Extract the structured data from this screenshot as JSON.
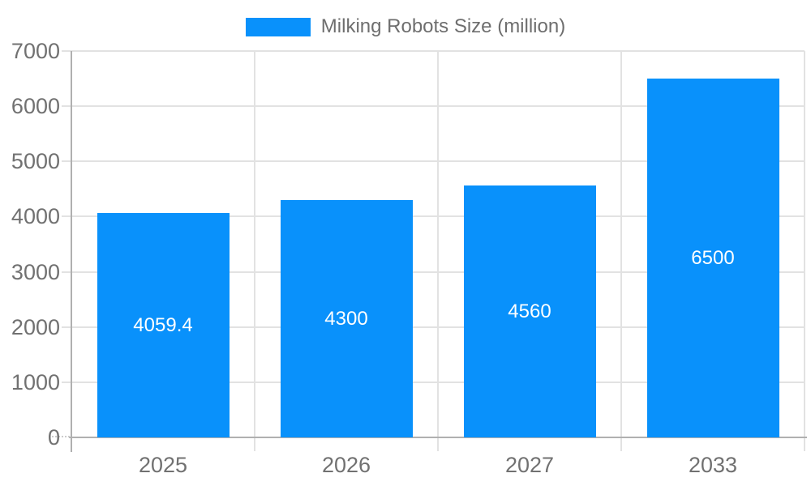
{
  "chart_data": {
    "type": "bar",
    "title": "",
    "legend": {
      "label": "Milking Robots Size (million)",
      "position": "top-center"
    },
    "categories": [
      "2025",
      "2026",
      "2027",
      "2033"
    ],
    "series": [
      {
        "name": "Milking Robots Size (million)",
        "values": [
          4059.4,
          4300,
          4560,
          6500
        ]
      }
    ],
    "bar_value_labels": [
      "4059.4",
      "4300",
      "4560",
      "6500"
    ],
    "xlabel": "",
    "ylabel": "",
    "ylim": [
      0,
      7000
    ],
    "yticks": [
      0,
      1000,
      2000,
      3000,
      4000,
      5000,
      6000,
      7000
    ],
    "ytick_labels": [
      "0",
      "1000",
      "2000",
      "3000",
      "4000",
      "5000",
      "6000",
      "7000"
    ],
    "grid": "horizontal-gridlines-and-category-boundary-verticals",
    "legend_position": "top",
    "colors": {
      "bar": "#0991fb",
      "grid": "#e2e2e2",
      "axis": "#b0b0b0",
      "tick_text": "#717171",
      "legend_text": "#6e6e6e",
      "bar_value_text": "#ffffff",
      "background": "#ffffff"
    }
  }
}
